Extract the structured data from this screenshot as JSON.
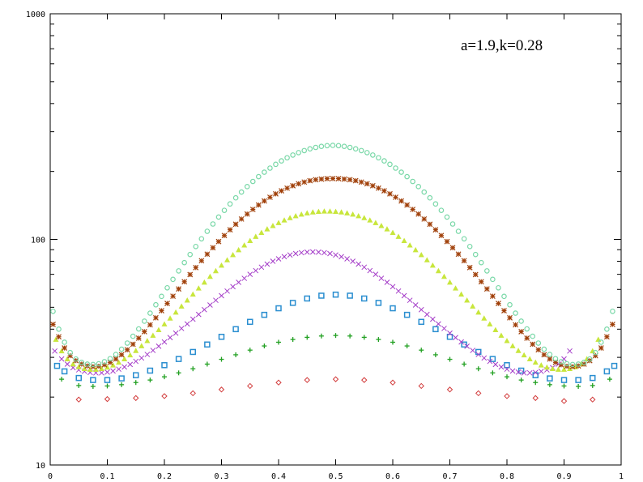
{
  "chart_data": {
    "type": "scatter",
    "title": "",
    "xlabel": "",
    "ylabel": "",
    "annotation": "a=1.9,k=0.28",
    "xlim": [
      0,
      1
    ],
    "ylim": [
      10,
      1000
    ],
    "yscale": "log",
    "grid": false,
    "legend": "none",
    "x_ticks": [
      "0",
      "0.1",
      "0.2",
      "0.3",
      "0.4",
      "0.5",
      "0.6",
      "0.7",
      "0.8",
      "0.9",
      "1"
    ],
    "y_ticks": [
      "10",
      "100",
      "1000"
    ],
    "series": [
      {
        "color": "#d23c3c",
        "marker": "diamond",
        "x": [
          0.05,
          0.1,
          0.15,
          0.2,
          0.25,
          0.3,
          0.35,
          0.4,
          0.45,
          0.5,
          0.55,
          0.6,
          0.65,
          0.7,
          0.75,
          0.8,
          0.85,
          0.9,
          0.95
        ],
        "y": [
          19.5,
          19.6,
          19.8,
          20.2,
          20.8,
          21.6,
          22.4,
          23.2,
          23.8,
          24.0,
          23.8,
          23.2,
          22.4,
          21.6,
          20.8,
          20.2,
          19.8,
          19.2,
          19.5
        ]
      },
      {
        "color": "#22a022",
        "marker": "plus",
        "x": [
          0.02,
          0.05,
          0.075,
          0.1,
          0.125,
          0.15,
          0.175,
          0.2,
          0.225,
          0.25,
          0.275,
          0.3,
          0.325,
          0.35,
          0.375,
          0.4,
          0.425,
          0.45,
          0.475,
          0.5,
          0.525,
          0.55,
          0.575,
          0.6,
          0.625,
          0.65,
          0.675,
          0.7,
          0.725,
          0.75,
          0.775,
          0.8,
          0.825,
          0.85,
          0.875,
          0.9,
          0.925,
          0.95,
          0.98
        ],
        "y": [
          24.0,
          22.5,
          22.3,
          22.4,
          22.7,
          23.2,
          23.8,
          24.6,
          25.6,
          26.7,
          28.0,
          29.4,
          30.8,
          32.3,
          33.7,
          35.0,
          36.0,
          36.8,
          37.3,
          37.5,
          37.3,
          36.8,
          36.0,
          35.0,
          33.7,
          32.3,
          30.8,
          29.4,
          28.0,
          26.7,
          25.6,
          24.6,
          23.8,
          23.2,
          22.7,
          22.4,
          22.3,
          22.5,
          24.0
        ]
      },
      {
        "color": "#2a8ed0",
        "marker": "square",
        "x": [
          0.012,
          0.025,
          0.05,
          0.075,
          0.1,
          0.125,
          0.15,
          0.175,
          0.2,
          0.225,
          0.25,
          0.275,
          0.3,
          0.325,
          0.35,
          0.375,
          0.4,
          0.425,
          0.45,
          0.475,
          0.5,
          0.525,
          0.55,
          0.575,
          0.6,
          0.625,
          0.65,
          0.675,
          0.7,
          0.725,
          0.75,
          0.775,
          0.8,
          0.825,
          0.85,
          0.875,
          0.9,
          0.925,
          0.95,
          0.975,
          0.988
        ],
        "y": [
          27.5,
          26.0,
          24.3,
          23.8,
          23.8,
          24.2,
          25.0,
          26.2,
          27.7,
          29.5,
          31.7,
          34.2,
          37.0,
          40.0,
          43.1,
          46.3,
          49.5,
          52.3,
          54.7,
          56.3,
          56.9,
          56.3,
          54.7,
          52.3,
          49.5,
          46.3,
          43.1,
          40.0,
          37.0,
          34.2,
          31.7,
          29.5,
          27.7,
          26.2,
          25.0,
          24.2,
          23.8,
          23.8,
          24.3,
          26.0,
          27.5
        ]
      },
      {
        "color": "#a43cc8",
        "marker": "cross",
        "x": [
          0.008,
          0.02,
          0.03,
          0.04,
          0.05,
          0.06,
          0.07,
          0.08,
          0.09,
          0.1,
          0.11,
          0.12,
          0.13,
          0.14,
          0.15,
          0.16,
          0.17,
          0.18,
          0.19,
          0.2,
          0.21,
          0.22,
          0.23,
          0.24,
          0.25,
          0.26,
          0.27,
          0.28,
          0.29,
          0.3,
          0.31,
          0.32,
          0.33,
          0.34,
          0.35,
          0.36,
          0.37,
          0.38,
          0.39,
          0.4,
          0.41,
          0.42,
          0.43,
          0.44,
          0.45,
          0.46,
          0.47,
          0.48,
          0.49,
          0.5,
          0.51,
          0.52,
          0.53,
          0.54,
          0.55,
          0.56,
          0.57,
          0.58,
          0.59,
          0.6,
          0.61,
          0.62,
          0.63,
          0.64,
          0.65,
          0.66,
          0.67,
          0.68,
          0.69,
          0.7,
          0.71,
          0.72,
          0.73,
          0.74,
          0.75,
          0.76,
          0.77,
          0.78,
          0.79,
          0.8,
          0.81,
          0.82,
          0.83,
          0.84,
          0.85,
          0.86,
          0.87,
          0.88,
          0.89,
          0.9,
          0.91,
          0.92,
          0.93,
          0.94,
          0.95,
          0.96,
          0.97,
          0.98,
          0.992
        ],
        "y": [
          32.0,
          29.5,
          28.0,
          27.0,
          26.4,
          26.0,
          25.7,
          25.6,
          25.6,
          25.8,
          26.1,
          26.6,
          27.2,
          27.9,
          28.8,
          29.8,
          30.9,
          32.2,
          33.6,
          35.1,
          36.7,
          38.4,
          40.3,
          42.2,
          44.3,
          46.5,
          48.8,
          51.2,
          53.7,
          56.3,
          59.0,
          61.7,
          64.5,
          67.2,
          70.0,
          72.7,
          75.3,
          77.7,
          80.0,
          82.0,
          83.8,
          85.3,
          86.5,
          87.3,
          87.8,
          88.0,
          87.8,
          87.3,
          86.5,
          85.3,
          83.8,
          82.0,
          80.0,
          77.7,
          75.3,
          72.7,
          70.0,
          67.2,
          64.5,
          61.7,
          59.0,
          56.3,
          53.7,
          51.2,
          48.8,
          46.5,
          44.3,
          42.2,
          40.3,
          38.4,
          36.7,
          35.1,
          33.6,
          32.2,
          30.9,
          29.8,
          28.8,
          27.9,
          27.2,
          26.6,
          26.1,
          25.8,
          25.6,
          25.6,
          25.7,
          26.0,
          26.4,
          27.0,
          28.0,
          29.5,
          32.0,
          32.0,
          32.0,
          32.0,
          32.0,
          32.0,
          32.0,
          32.0,
          32.0
        ],
        "truncate": 91
      },
      {
        "color": "#c8e63c",
        "marker": "triangle",
        "x": [
          0.01,
          0.02,
          0.03,
          0.04,
          0.05,
          0.06,
          0.07,
          0.08,
          0.09,
          0.1,
          0.11,
          0.12,
          0.13,
          0.14,
          0.15,
          0.16,
          0.17,
          0.18,
          0.19,
          0.2,
          0.21,
          0.22,
          0.23,
          0.24,
          0.25,
          0.26,
          0.27,
          0.28,
          0.29,
          0.3,
          0.31,
          0.32,
          0.33,
          0.34,
          0.35,
          0.36,
          0.37,
          0.38,
          0.39,
          0.4,
          0.41,
          0.42,
          0.43,
          0.44,
          0.45,
          0.46,
          0.47,
          0.48,
          0.49,
          0.5,
          0.51,
          0.52,
          0.53,
          0.54,
          0.55,
          0.56,
          0.57,
          0.58,
          0.59,
          0.6,
          0.61,
          0.62,
          0.63,
          0.64,
          0.65,
          0.66,
          0.67,
          0.68,
          0.69,
          0.7,
          0.71,
          0.72,
          0.73,
          0.74,
          0.75,
          0.76,
          0.77,
          0.78,
          0.79,
          0.8,
          0.81,
          0.82,
          0.83,
          0.84,
          0.85,
          0.86,
          0.87,
          0.88,
          0.89,
          0.9,
          0.91,
          0.92,
          0.93,
          0.94,
          0.95,
          0.96,
          0.97,
          0.98,
          0.99
        ],
        "y": [
          36.0,
          32.0,
          29.5,
          28.0,
          27.2,
          26.7,
          26.5,
          26.5,
          26.7,
          27.1,
          27.7,
          28.5,
          29.5,
          30.7,
          32.1,
          33.7,
          35.5,
          37.5,
          39.7,
          42.1,
          44.7,
          47.5,
          50.5,
          53.7,
          57.1,
          60.7,
          64.5,
          68.4,
          72.5,
          76.7,
          81.0,
          85.4,
          89.8,
          94.2,
          98.6,
          102.9,
          107.1,
          111.1,
          114.9,
          118.4,
          121.6,
          124.5,
          127.0,
          129.1,
          130.8,
          132.0,
          132.8,
          133.2,
          133.2,
          132.8,
          132.0,
          130.8,
          129.1,
          127.0,
          124.5,
          121.6,
          118.4,
          114.9,
          111.1,
          107.1,
          102.9,
          98.6,
          94.2,
          89.8,
          85.4,
          81.0,
          76.7,
          72.5,
          68.4,
          64.5,
          60.7,
          57.1,
          53.7,
          50.5,
          47.5,
          44.7,
          42.1,
          39.7,
          37.5,
          35.5,
          33.7,
          32.1,
          30.7,
          29.5,
          28.5,
          27.7,
          27.1,
          26.7,
          26.5,
          26.5,
          26.7,
          27.2,
          28.0,
          29.5,
          32.0,
          36.0,
          36.0,
          36.0,
          36.0
        ],
        "truncate": 96
      },
      {
        "color": "#a0400a",
        "marker": "asterisk",
        "x": [
          0.005,
          0.015,
          0.025,
          0.035,
          0.045,
          0.055,
          0.065,
          0.075,
          0.085,
          0.095,
          0.105,
          0.115,
          0.125,
          0.135,
          0.145,
          0.155,
          0.165,
          0.175,
          0.185,
          0.195,
          0.205,
          0.215,
          0.225,
          0.235,
          0.245,
          0.255,
          0.265,
          0.275,
          0.285,
          0.295,
          0.305,
          0.315,
          0.325,
          0.335,
          0.345,
          0.355,
          0.365,
          0.375,
          0.385,
          0.395,
          0.405,
          0.415,
          0.425,
          0.435,
          0.445,
          0.455,
          0.465,
          0.475,
          0.485,
          0.495,
          0.505,
          0.515,
          0.525,
          0.535,
          0.545,
          0.555,
          0.565,
          0.575,
          0.585,
          0.595,
          0.605,
          0.615,
          0.625,
          0.635,
          0.645,
          0.655,
          0.665,
          0.675,
          0.685,
          0.695,
          0.705,
          0.715,
          0.725,
          0.735,
          0.745,
          0.755,
          0.765,
          0.775,
          0.785,
          0.795,
          0.805,
          0.815,
          0.825,
          0.835,
          0.845,
          0.855,
          0.865,
          0.875,
          0.885,
          0.895,
          0.905,
          0.915,
          0.925,
          0.935,
          0.945,
          0.955,
          0.965,
          0.975,
          0.985,
          0.995
        ],
        "y": [
          42.0,
          37.0,
          33.0,
          30.5,
          29.0,
          28.0,
          27.5,
          27.3,
          27.4,
          27.8,
          28.5,
          29.5,
          30.8,
          32.4,
          34.3,
          36.5,
          39.0,
          41.8,
          44.9,
          48.3,
          52.0,
          56.0,
          60.3,
          64.9,
          69.8,
          75.0,
          80.4,
          86.0,
          91.8,
          97.8,
          104.0,
          110.3,
          116.7,
          123.1,
          129.5,
          135.8,
          142.0,
          148.0,
          153.7,
          159.1,
          164.1,
          168.7,
          172.8,
          176.4,
          179.5,
          182.0,
          183.9,
          185.1,
          185.8,
          186.0,
          185.8,
          185.1,
          183.9,
          182.0,
          179.5,
          176.4,
          172.8,
          168.7,
          164.1,
          159.1,
          153.7,
          148.0,
          142.0,
          135.8,
          129.5,
          123.1,
          116.7,
          110.3,
          104.0,
          97.8,
          91.8,
          86.0,
          80.4,
          75.0,
          69.8,
          64.9,
          60.3,
          56.0,
          52.0,
          48.3,
          44.9,
          41.8,
          39.0,
          36.5,
          34.3,
          32.4,
          30.8,
          29.5,
          28.5,
          27.8,
          27.4,
          27.3,
          27.5,
          28.0,
          29.0,
          30.5,
          33.0,
          37.0,
          42.0,
          42.0
        ],
        "truncate": 99
      },
      {
        "color": "#7ad8a8",
        "marker": "circle",
        "x": [
          0.005,
          0.015,
          0.025,
          0.035,
          0.045,
          0.055,
          0.065,
          0.075,
          0.085,
          0.095,
          0.105,
          0.115,
          0.125,
          0.135,
          0.145,
          0.155,
          0.165,
          0.175,
          0.185,
          0.195,
          0.205,
          0.215,
          0.225,
          0.235,
          0.245,
          0.255,
          0.265,
          0.275,
          0.285,
          0.295,
          0.305,
          0.315,
          0.325,
          0.335,
          0.345,
          0.355,
          0.365,
          0.375,
          0.385,
          0.395,
          0.405,
          0.415,
          0.425,
          0.435,
          0.445,
          0.455,
          0.465,
          0.475,
          0.485,
          0.495,
          0.505,
          0.515,
          0.525,
          0.535,
          0.545,
          0.555,
          0.565,
          0.575,
          0.585,
          0.595,
          0.605,
          0.615,
          0.625,
          0.635,
          0.645,
          0.655,
          0.665,
          0.675,
          0.685,
          0.695,
          0.705,
          0.715,
          0.725,
          0.735,
          0.745,
          0.755,
          0.765,
          0.775,
          0.785,
          0.795,
          0.805,
          0.815,
          0.825,
          0.835,
          0.845,
          0.855,
          0.865,
          0.875,
          0.885,
          0.895,
          0.905,
          0.915,
          0.925,
          0.935,
          0.945,
          0.955,
          0.965,
          0.975,
          0.985,
          0.995
        ],
        "y": [
          48.0,
          40.0,
          35.0,
          31.5,
          29.5,
          28.5,
          28.0,
          27.9,
          28.1,
          28.7,
          29.6,
          30.9,
          32.6,
          34.7,
          37.2,
          40.1,
          43.4,
          47.1,
          51.3,
          55.9,
          61.0,
          66.5,
          72.5,
          78.9,
          85.7,
          93.0,
          100.6,
          108.6,
          117.0,
          125.6,
          134.5,
          143.6,
          152.8,
          162.1,
          171.4,
          180.6,
          189.7,
          198.5,
          207.0,
          215.1,
          222.8,
          230.0,
          236.5,
          242.4,
          247.5,
          252.0,
          255.6,
          258.4,
          260.3,
          261.0,
          260.3,
          258.4,
          255.6,
          252.0,
          247.5,
          242.4,
          236.5,
          230.0,
          222.8,
          215.1,
          207.0,
          198.5,
          189.7,
          180.6,
          171.4,
          162.1,
          152.8,
          143.6,
          134.5,
          125.6,
          117.0,
          108.6,
          100.6,
          93.0,
          85.7,
          78.9,
          72.5,
          66.5,
          61.0,
          55.9,
          51.3,
          47.1,
          43.4,
          40.1,
          37.2,
          34.7,
          32.6,
          30.9,
          29.6,
          28.7,
          28.1,
          27.9,
          28.0,
          28.5,
          29.5,
          31.5,
          35.0,
          40.0,
          48.0,
          48.0
        ],
        "truncate": 99
      }
    ]
  }
}
